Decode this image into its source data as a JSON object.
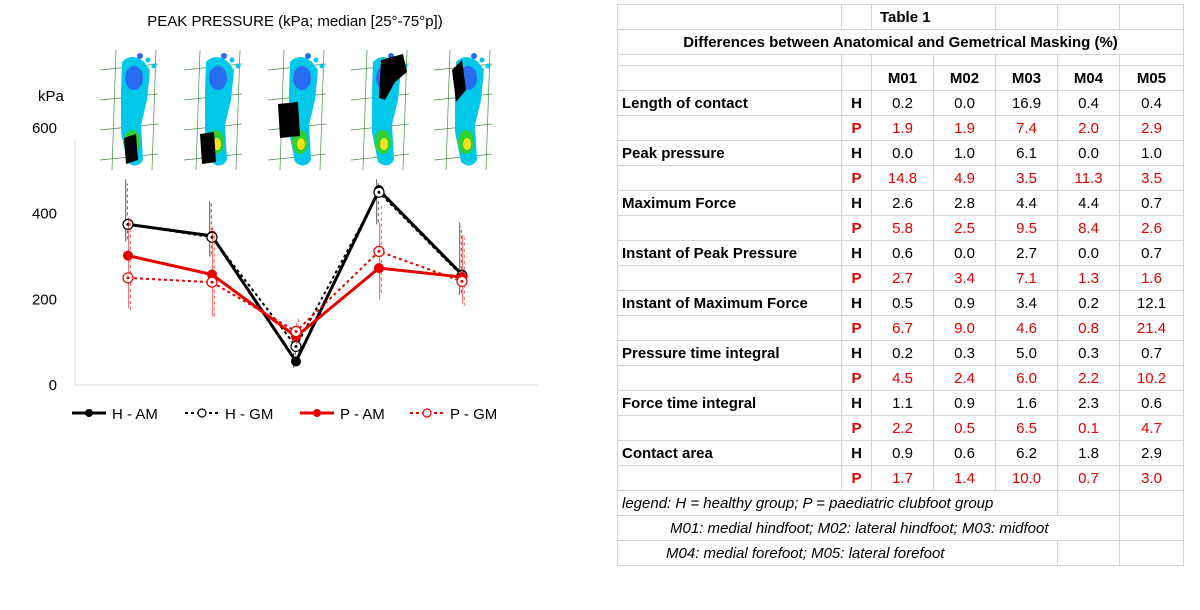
{
  "chart_data": {
    "type": "line",
    "title": "PEAK PRESSURE (kPa; median [25°-75°p])",
    "ylabel": "kPa",
    "ylim": [
      0,
      650
    ],
    "yticks": [
      0,
      200,
      400,
      600
    ],
    "categories": [
      "M01",
      "M02",
      "M03",
      "M04",
      "M05"
    ],
    "series": [
      {
        "name": "H - AM",
        "color": "#000000",
        "style": "solid",
        "marker": "filled",
        "values": [
          375,
          348,
          55,
          455,
          258
        ],
        "whiskers": [
          [
            335,
            480
          ],
          [
            300,
            430
          ],
          [
            40,
            75
          ],
          [
            375,
            480
          ],
          [
            210,
            380
          ]
        ]
      },
      {
        "name": "H - GM",
        "color": "#000000",
        "style": "dotted",
        "marker": "hollow",
        "values": [
          375,
          345,
          90,
          450,
          255
        ],
        "whiskers": [
          [
            340,
            470
          ],
          [
            305,
            425
          ],
          [
            70,
            110
          ],
          [
            380,
            475
          ],
          [
            215,
            370
          ]
        ]
      },
      {
        "name": "P - AM",
        "color": "#e60000",
        "style": "solid",
        "marker": "filled",
        "values": [
          302,
          258,
          113,
          273,
          252
        ],
        "whiskers": [
          [
            180,
            390
          ],
          [
            160,
            370
          ],
          [
            95,
            145
          ],
          [
            200,
            380
          ],
          [
            190,
            350
          ]
        ]
      },
      {
        "name": "P - GM",
        "color": "#e60000",
        "style": "dotted",
        "marker": "hollow",
        "values": [
          250,
          240,
          125,
          312,
          242
        ],
        "whiskers": [
          [
            175,
            385
          ],
          [
            160,
            360
          ],
          [
            105,
            155
          ],
          [
            215,
            420
          ],
          [
            185,
            345
          ]
        ]
      }
    ],
    "legend_position": "bottom",
    "grid": false
  },
  "table": {
    "title": "Table 1",
    "subtitle": "Differences between Anatomical and Gemetrical Masking (%)",
    "columns": [
      "M01",
      "M02",
      "M03",
      "M04",
      "M05"
    ],
    "rows": [
      {
        "param": "Length of contact",
        "H": [
          "0.2",
          "0.0",
          "16.9",
          "0.4",
          "0.4"
        ],
        "P": [
          "1.9",
          "1.9",
          "7.4",
          "2.0",
          "2.9"
        ]
      },
      {
        "param": "Peak pressure",
        "H": [
          "0.0",
          "1.0",
          "6.1",
          "0.0",
          "1.0"
        ],
        "P": [
          "14.8",
          "4.9",
          "3.5",
          "11.3",
          "3.5"
        ]
      },
      {
        "param": "Maximum Force",
        "H": [
          "2.6",
          "2.8",
          "4.4",
          "4.4",
          "0.7"
        ],
        "P": [
          "5.8",
          "2.5",
          "9.5",
          "8.4",
          "2.6"
        ]
      },
      {
        "param": "Instant of Peak Pressure",
        "H": [
          "0.6",
          "0.0",
          "2.7",
          "0.0",
          "0.7"
        ],
        "P": [
          "2.7",
          "3.4",
          "7.1",
          "1.3",
          "1.6"
        ]
      },
      {
        "param": "Instant of Maximum Force",
        "H": [
          "0.5",
          "0.9",
          "3.4",
          "0.2",
          "12.1"
        ],
        "P": [
          "6.7",
          "9.0",
          "4.6",
          "0.8",
          "21.4"
        ]
      },
      {
        "param": "Pressure time integral",
        "H": [
          "0.2",
          "0.3",
          "5.0",
          "0.3",
          "0.7"
        ],
        "P": [
          "4.5",
          "2.4",
          "6.0",
          "2.2",
          "10.2"
        ]
      },
      {
        "param": "Force time integral",
        "H": [
          "1.1",
          "0.9",
          "1.6",
          "2.3",
          "0.6"
        ],
        "P": [
          "2.2",
          "0.5",
          "6.5",
          "0.1",
          "4.7"
        ]
      },
      {
        "param": "Contact area",
        "H": [
          "0.9",
          "0.6",
          "6.2",
          "1.8",
          "2.9"
        ],
        "P": [
          "1.7",
          "1.4",
          "10.0",
          "0.7",
          "3.0"
        ]
      }
    ],
    "group_labels": {
      "h": "H",
      "p": "P"
    },
    "legend": [
      "legend: H = healthy group; P = paediatric clubfoot group",
      "M01: medial hindfoot; M02: lateral hindfoot; M03: midfoot",
      "M04: medial forefoot; M05: lateral forefoot"
    ]
  }
}
